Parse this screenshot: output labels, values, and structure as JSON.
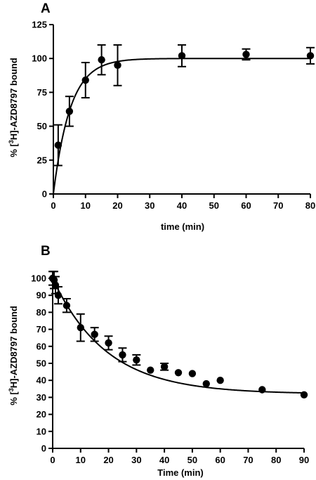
{
  "chart_data": [
    {
      "panel": "A",
      "type": "scatter",
      "title": "",
      "xlabel": "time (min)",
      "ylabel_parts": {
        "before": "% [",
        "sup": "3",
        "after": "H]-AZD8797 bound"
      },
      "xlim": [
        0,
        80
      ],
      "ylim": [
        0,
        125
      ],
      "xticks": [
        0,
        10,
        20,
        30,
        40,
        50,
        60,
        70,
        80
      ],
      "yticks": [
        0,
        25,
        50,
        75,
        100,
        125
      ],
      "grid": false,
      "fit": "one-phase association",
      "points": [
        {
          "x": 1.5,
          "y": 36,
          "err": 15
        },
        {
          "x": 5,
          "y": 61,
          "err": 11
        },
        {
          "x": 10,
          "y": 84,
          "err": 13
        },
        {
          "x": 15,
          "y": 99,
          "err": 11
        },
        {
          "x": 20,
          "y": 95,
          "err": 15
        },
        {
          "x": 40,
          "y": 102,
          "err": 8
        },
        {
          "x": 60,
          "y": 103,
          "err": 4
        },
        {
          "x": 80,
          "y": 102,
          "err": 6
        }
      ]
    },
    {
      "panel": "B",
      "type": "scatter",
      "title": "",
      "xlabel": "Time (min)",
      "ylabel_parts": {
        "before": "% [",
        "sup": "3",
        "after": "H]-AZD8797 bound"
      },
      "xlim": [
        0,
        90
      ],
      "ylim": [
        0,
        100
      ],
      "xticks": [
        0,
        10,
        20,
        30,
        40,
        50,
        60,
        70,
        80,
        90
      ],
      "yticks": [
        0,
        10,
        20,
        30,
        40,
        50,
        60,
        70,
        80,
        90,
        100
      ],
      "grid": false,
      "fit": "one-phase exponential decay",
      "points": [
        {
          "x": 0,
          "y": 100,
          "err": 4
        },
        {
          "x": 0.5,
          "y": 99,
          "err": 5
        },
        {
          "x": 1,
          "y": 96,
          "err": 5
        },
        {
          "x": 2,
          "y": 90,
          "err": 5
        },
        {
          "x": 5,
          "y": 84,
          "err": 4
        },
        {
          "x": 10,
          "y": 71,
          "err": 8
        },
        {
          "x": 15,
          "y": 67,
          "err": 4
        },
        {
          "x": 20,
          "y": 62,
          "err": 4
        },
        {
          "x": 25,
          "y": 55,
          "err": 4
        },
        {
          "x": 30,
          "y": 52,
          "err": 3
        },
        {
          "x": 35,
          "y": 46,
          "err": 0
        },
        {
          "x": 40,
          "y": 48,
          "err": 2
        },
        {
          "x": 45,
          "y": 44.5,
          "err": 0
        },
        {
          "x": 50,
          "y": 44,
          "err": 0
        },
        {
          "x": 55,
          "y": 38,
          "err": 0
        },
        {
          "x": 60,
          "y": 40,
          "err": 0
        },
        {
          "x": 75,
          "y": 34.5,
          "err": 0
        },
        {
          "x": 90,
          "y": 31.5,
          "err": 0
        }
      ]
    }
  ]
}
